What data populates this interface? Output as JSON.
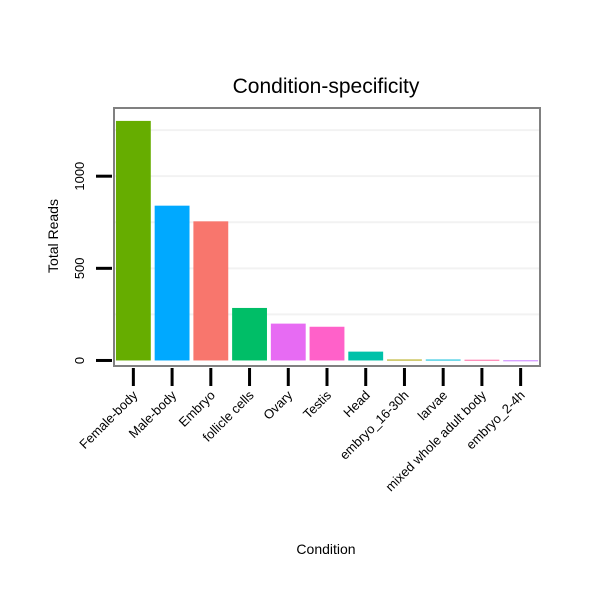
{
  "chart_data": {
    "type": "bar",
    "title": "Condition-specificity",
    "xlabel": "Condition",
    "ylabel": "Total Reads",
    "categories": [
      "Female-body",
      "Male-body",
      "Embryo",
      "follicle cells",
      "Ovary",
      "Testis",
      "Head",
      "embryo_16-30h",
      "larvae",
      "mixed whole adult body",
      "embryo_2-4h"
    ],
    "values": [
      1300,
      840,
      755,
      285,
      200,
      183,
      48,
      5,
      5,
      4,
      1
    ],
    "colors": [
      "#66ad00",
      "#00a9ff",
      "#f8766d",
      "#00be67",
      "#e76bf3",
      "#ff61c9",
      "#00c1a9",
      "#aea200",
      "#00bbda",
      "#ff68a1",
      "#c77cff"
    ],
    "ylim": [
      -30,
      1370
    ],
    "yticks": [
      0,
      500,
      1000
    ],
    "ytick_labels": [
      "0",
      "500",
      "1000"
    ],
    "grid": true,
    "legend": "none"
  }
}
